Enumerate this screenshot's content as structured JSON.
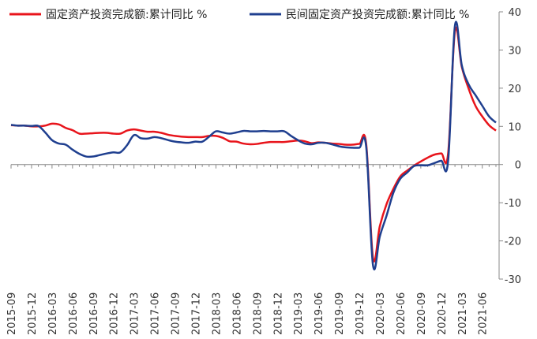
{
  "chart_data": {
    "type": "line",
    "legend_placement": "top",
    "grid": false,
    "ylim": [
      -30,
      40
    ],
    "yticks": [
      40,
      30,
      20,
      10,
      0,
      -10,
      -20,
      -30
    ],
    "x_tick_labels": [
      "2015-09",
      "2015-12",
      "2016-03",
      "2016-06",
      "2016-09",
      "2016-12",
      "2017-03",
      "2017-06",
      "2017-09",
      "2017-12",
      "2018-03",
      "2018-06",
      "2018-09",
      "2018-12",
      "2019-03",
      "2019-06",
      "2019-09",
      "2019-12",
      "2020-03",
      "2020-06",
      "2020-09",
      "2020-12",
      "2021-03",
      "2021-06"
    ],
    "x": [
      "2015-09",
      "2015-10",
      "2015-11",
      "2015-12",
      "2016-01",
      "2016-02",
      "2016-03",
      "2016-04",
      "2016-05",
      "2016-06",
      "2016-07",
      "2016-08",
      "2016-09",
      "2016-10",
      "2016-11",
      "2016-12",
      "2017-01",
      "2017-02",
      "2017-03",
      "2017-04",
      "2017-05",
      "2017-06",
      "2017-07",
      "2017-08",
      "2017-09",
      "2017-10",
      "2017-11",
      "2017-12",
      "2018-01",
      "2018-02",
      "2018-03",
      "2018-04",
      "2018-05",
      "2018-06",
      "2018-07",
      "2018-08",
      "2018-09",
      "2018-10",
      "2018-11",
      "2018-12",
      "2019-01",
      "2019-02",
      "2019-03",
      "2019-04",
      "2019-05",
      "2019-06",
      "2019-07",
      "2019-08",
      "2019-09",
      "2019-10",
      "2019-11",
      "2019-12",
      "2020-01",
      "2020-02",
      "2020-03",
      "2020-04",
      "2020-05",
      "2020-06",
      "2020-07",
      "2020-08",
      "2020-09",
      "2020-10",
      "2020-11",
      "2020-12",
      "2021-01",
      "2021-02",
      "2021-03",
      "2021-04",
      "2021-05",
      "2021-06",
      "2021-07",
      "2021-08"
    ],
    "series": [
      {
        "name": "固定资产投资完成额:累计同比  %",
        "color": "#e8141b",
        "values": [
          10.3,
          10.2,
          10.2,
          10.0,
          10.0,
          10.2,
          10.7,
          10.5,
          9.6,
          9.0,
          8.1,
          8.1,
          8.2,
          8.3,
          8.3,
          8.1,
          8.1,
          8.9,
          9.2,
          8.9,
          8.6,
          8.6,
          8.3,
          7.8,
          7.5,
          7.3,
          7.2,
          7.2,
          7.2,
          7.5,
          7.5,
          7.0,
          6.1,
          6.0,
          5.5,
          5.3,
          5.4,
          5.7,
          5.9,
          5.9,
          5.9,
          6.1,
          6.3,
          6.1,
          5.6,
          5.8,
          5.7,
          5.5,
          5.4,
          5.2,
          5.2,
          5.4,
          5.4,
          -24.5,
          -16.1,
          -10.3,
          -6.3,
          -3.1,
          -1.6,
          -0.3,
          0.8,
          1.8,
          2.6,
          2.9,
          2.9,
          35.0,
          25.6,
          19.9,
          15.4,
          12.6,
          10.3,
          8.9
        ]
      },
      {
        "name": "民间固定资产投资完成额:累计同比  %",
        "color": "#1f3f8f",
        "values": [
          10.4,
          10.2,
          10.2,
          10.1,
          10.1,
          8.4,
          6.4,
          5.5,
          5.2,
          3.9,
          2.8,
          2.1,
          2.1,
          2.5,
          2.9,
          3.2,
          3.2,
          5.1,
          7.7,
          6.9,
          6.8,
          7.2,
          6.9,
          6.4,
          6.0,
          5.8,
          5.7,
          6.0,
          6.0,
          7.3,
          8.7,
          8.4,
          8.1,
          8.4,
          8.8,
          8.7,
          8.7,
          8.8,
          8.7,
          8.7,
          8.7,
          7.5,
          6.4,
          5.5,
          5.3,
          5.7,
          5.7,
          5.3,
          4.8,
          4.5,
          4.4,
          4.4,
          4.7,
          -26.4,
          -18.8,
          -13.3,
          -7.3,
          -3.7,
          -2.1,
          -0.4,
          -0.2,
          -0.2,
          0.4,
          1.0,
          1.0,
          36.4,
          26.0,
          21.0,
          18.2,
          15.4,
          12.6,
          11.0
        ]
      }
    ]
  }
}
